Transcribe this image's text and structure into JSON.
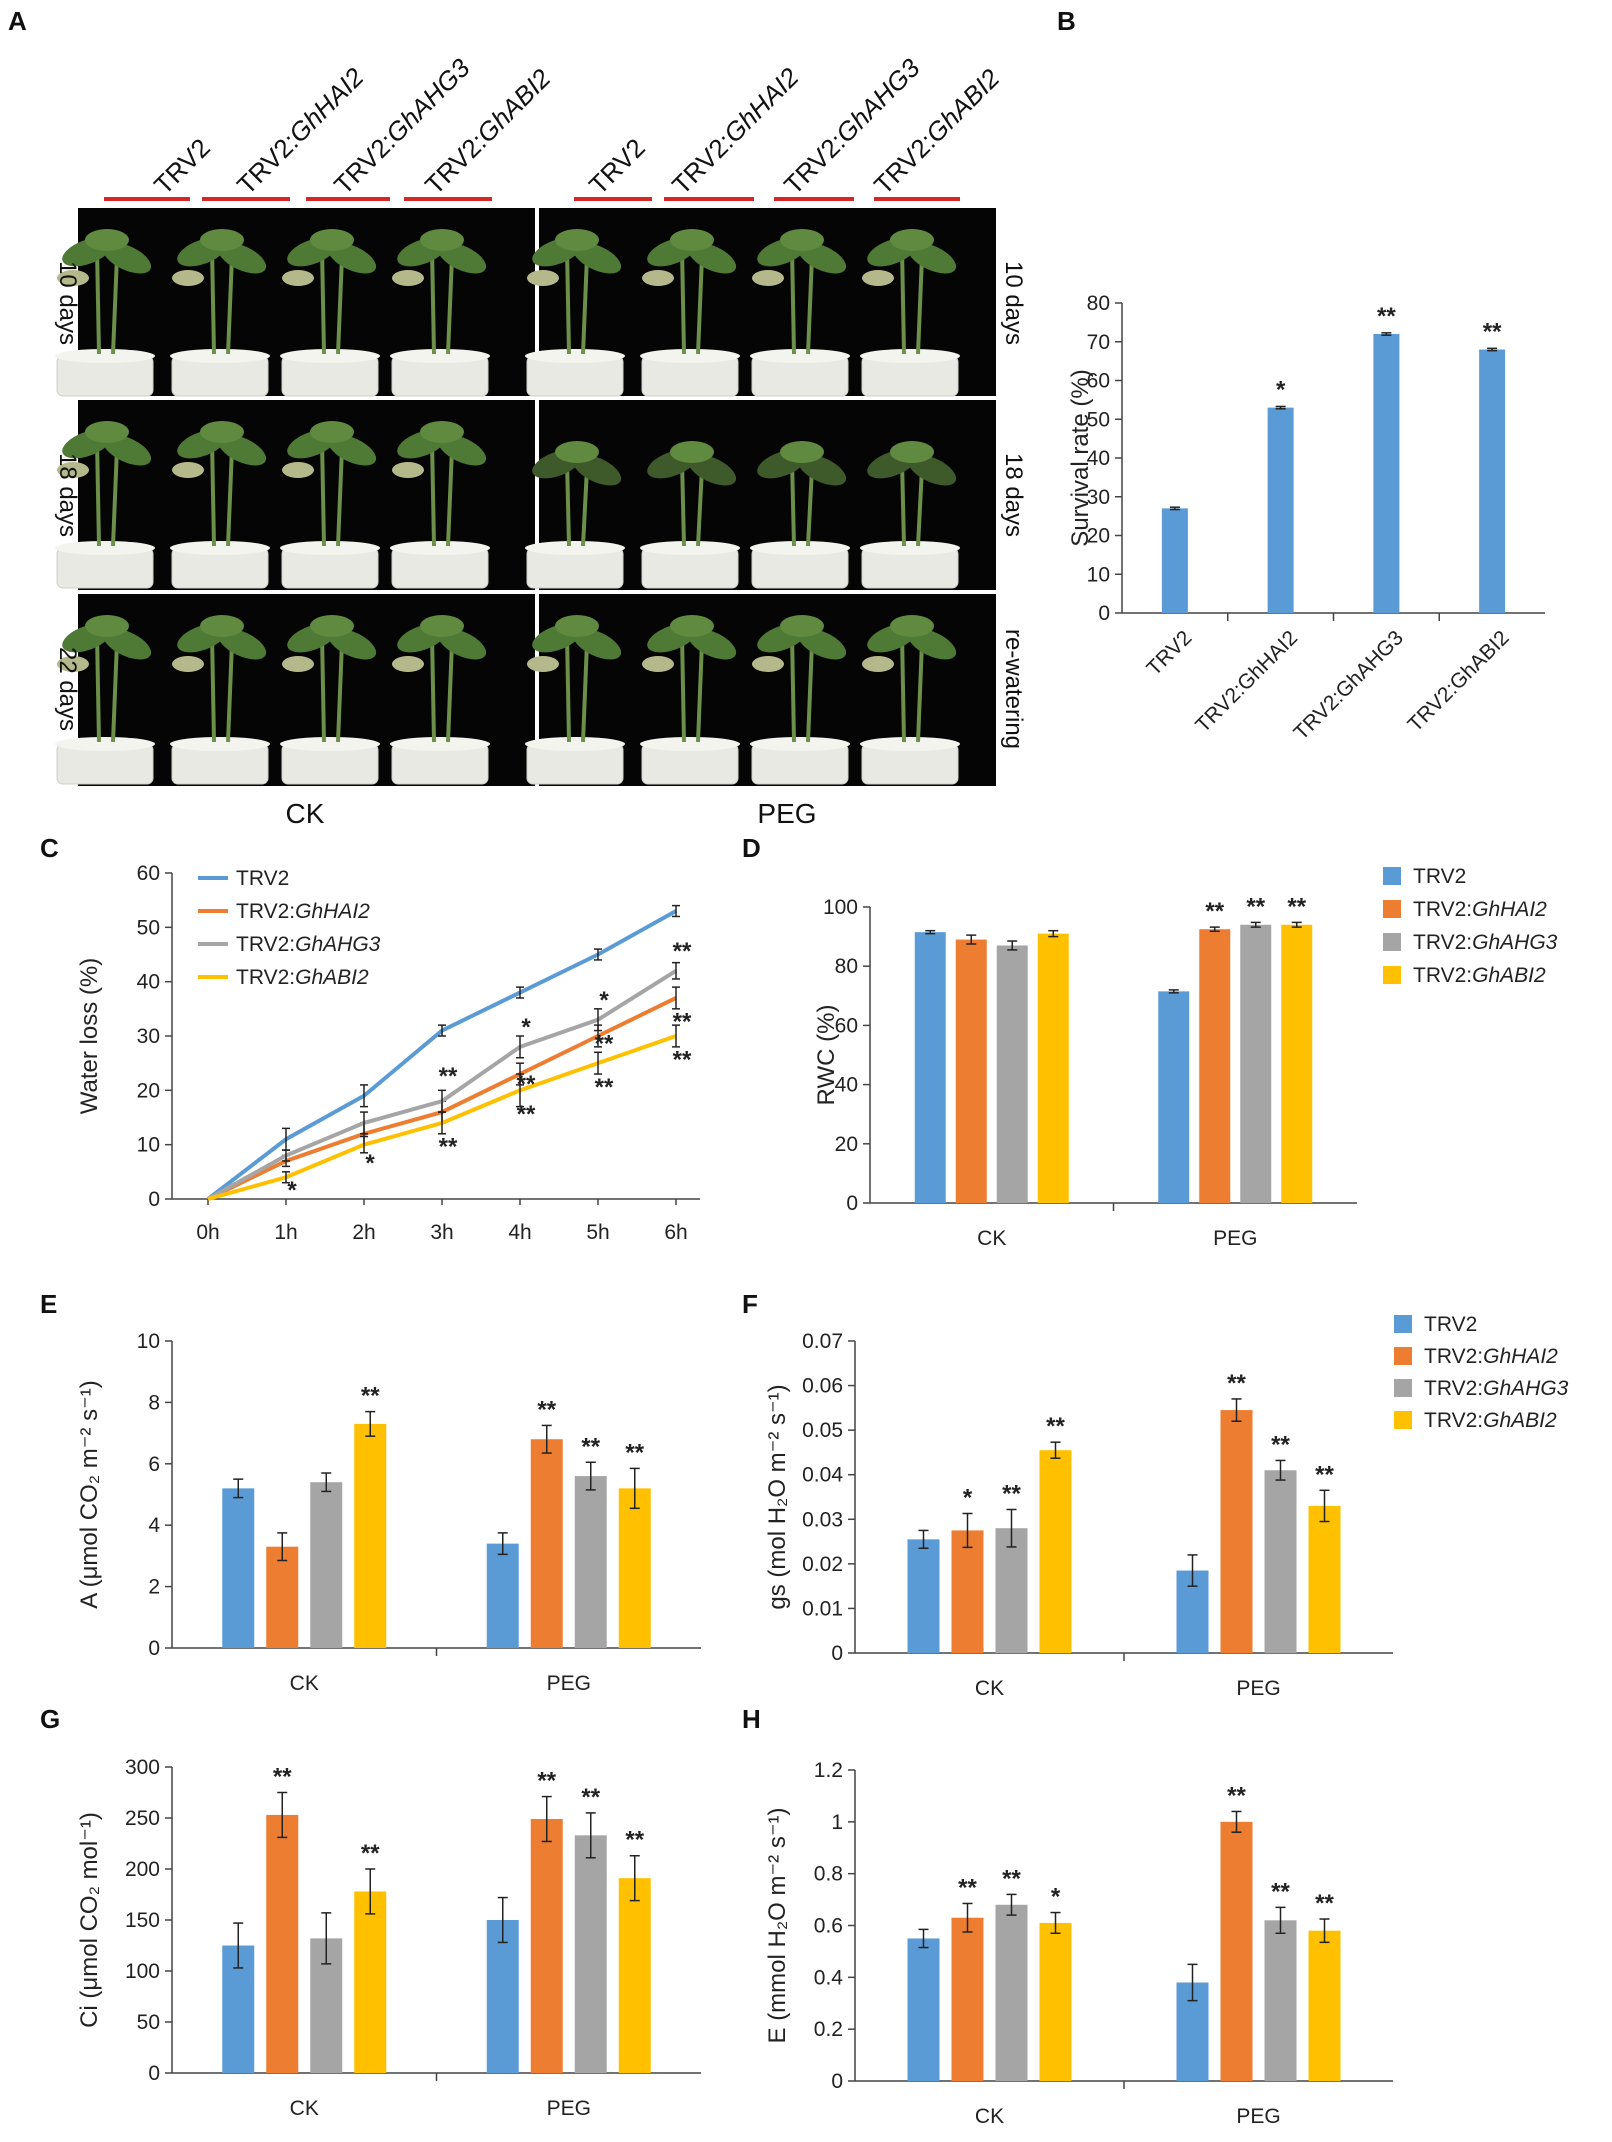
{
  "colors": {
    "TRV2": "#5B9BD5",
    "TRV2:GhHAI2": "#ED7D31",
    "TRV2:GhAHG3": "#A5A5A5",
    "TRV2:GhABI2": "#FFC000",
    "marker": "#d62728",
    "photo_bg": "#050505"
  },
  "panelA": {
    "letter": "A",
    "lines": [
      "TRV2",
      "TRV2:GhHAI2",
      "TRV2:GhAHG3",
      "TRV2:GhABI2"
    ],
    "lines_prefix": "TRV2:",
    "ck_rows": [
      "10 days",
      "18 days",
      "22 days"
    ],
    "peg_rows": [
      "10 days",
      "18 days",
      "re-watering"
    ],
    "ck_label": "CK",
    "peg_label": "PEG",
    "image_description": "Photographs of cotton seedlings in white pots against black background"
  },
  "chart_data": [
    {
      "panel": "B",
      "type": "bar",
      "categories": [
        "TRV2",
        "TRV2:GhHAI2",
        "TRV2:GhAHG3",
        "TRV2:GhABI2"
      ],
      "values": [
        27,
        53,
        72,
        68
      ],
      "errors": [
        0.3,
        0.3,
        0.3,
        0.3
      ],
      "stars": [
        "",
        "*",
        "**",
        "**"
      ],
      "ylabel": "Survival rate (%)",
      "ylim": [
        0,
        80
      ],
      "yticks": [
        "0",
        "10",
        "20",
        "30",
        "40",
        "50",
        "60",
        "70",
        "80"
      ]
    },
    {
      "panel": "C",
      "type": "line",
      "x": [
        "0h",
        "1h",
        "2h",
        "3h",
        "4h",
        "5h",
        "6h"
      ],
      "series": [
        {
          "name": "TRV2",
          "values": [
            0,
            11,
            19,
            31,
            38,
            45,
            53
          ],
          "errors": [
            0,
            2,
            2,
            1,
            1,
            1,
            1
          ]
        },
        {
          "name": "TRV2:GhHAI2",
          "values": [
            0,
            7,
            12,
            16,
            23,
            30,
            37
          ],
          "errors": [
            0,
            1,
            2,
            2,
            2,
            2,
            2
          ]
        },
        {
          "name": "TRV2:GhAHG3",
          "values": [
            0,
            8,
            14,
            18,
            28,
            33,
            42
          ],
          "errors": [
            0,
            1,
            2,
            2,
            2,
            2,
            1.5
          ]
        },
        {
          "name": "TRV2:GhABI2",
          "values": [
            0,
            4,
            10,
            14,
            20,
            25,
            30
          ],
          "errors": [
            0,
            1,
            1.5,
            2,
            3,
            2,
            2
          ]
        }
      ],
      "stars": [
        {
          "x": "1h",
          "label": "*",
          "y": 2
        },
        {
          "x": "2h",
          "label": "*",
          "y": 7
        },
        {
          "x": "3h",
          "label": "**",
          "y": 10
        },
        {
          "x": "3h",
          "label": "**",
          "y": 23
        },
        {
          "x": "4h",
          "label": "*",
          "y": 32
        },
        {
          "x": "4h",
          "label": "**",
          "y": 21.5
        },
        {
          "x": "4h",
          "label": "**",
          "y": 16
        },
        {
          "x": "5h",
          "label": "*",
          "y": 37
        },
        {
          "x": "5h",
          "label": "**",
          "y": 29
        },
        {
          "x": "5h",
          "label": "**",
          "y": 21
        },
        {
          "x": "6h",
          "label": "**",
          "y": 46
        },
        {
          "x": "6h",
          "label": "**",
          "y": 33
        },
        {
          "x": "6h",
          "label": "**",
          "y": 26
        }
      ],
      "ylabel": "Water loss (%)",
      "ylim": [
        0,
        60
      ],
      "yticks": [
        "0",
        "10",
        "20",
        "30",
        "40",
        "50",
        "60"
      ],
      "legend": [
        "TRV2",
        "TRV2:GhHAI2",
        "TRV2:GhAHG3",
        "TRV2:GhABI2"
      ]
    },
    {
      "panel": "D",
      "type": "bar",
      "categories": [
        "CK",
        "PEG"
      ],
      "series": [
        {
          "name": "TRV2",
          "values": [
            91.5,
            71.5
          ],
          "errors": [
            0.5,
            0.5
          ]
        },
        {
          "name": "TRV2:GhHAI2",
          "values": [
            89,
            92.5
          ],
          "errors": [
            1.5,
            0.7
          ]
        },
        {
          "name": "TRV2:GhAHG3",
          "values": [
            87,
            94
          ],
          "errors": [
            1.5,
            0.8
          ]
        },
        {
          "name": "TRV2:GhABI2",
          "values": [
            91,
            94
          ],
          "errors": [
            1,
            0.8
          ]
        }
      ],
      "stars": [
        [
          "",
          ""
        ],
        [
          "",
          "**"
        ],
        [
          "",
          "**"
        ],
        [
          "",
          "**"
        ]
      ],
      "ylabel": "RWC (%)",
      "ylim": [
        0,
        100
      ],
      "yticks": [
        "0",
        "20",
        "40",
        "60",
        "80",
        "100"
      ],
      "legend": [
        "TRV2",
        "TRV2:GhHAI2",
        "TRV2:GhAHG3",
        "TRV2:GhABI2"
      ]
    },
    {
      "panel": "E",
      "type": "bar",
      "categories": [
        "CK",
        "PEG"
      ],
      "series": [
        {
          "name": "TRV2",
          "values": [
            5.2,
            3.4
          ],
          "errors": [
            0.3,
            0.35
          ]
        },
        {
          "name": "TRV2:GhHAI2",
          "values": [
            3.3,
            6.8
          ],
          "errors": [
            0.45,
            0.45
          ]
        },
        {
          "name": "TRV2:GhAHG3",
          "values": [
            5.4,
            5.6
          ],
          "errors": [
            0.3,
            0.45
          ]
        },
        {
          "name": "TRV2:GhABI2",
          "values": [
            7.3,
            5.2
          ],
          "errors": [
            0.4,
            0.65
          ]
        }
      ],
      "stars": [
        [
          "",
          ""
        ],
        [
          "",
          "**"
        ],
        [
          "",
          "**"
        ],
        [
          "**",
          "**"
        ]
      ],
      "ylabel": "A (μmol CO₂ m⁻² s⁻¹)",
      "ylim": [
        0,
        10
      ],
      "yticks": [
        "0",
        "2",
        "4",
        "6",
        "8",
        "10"
      ]
    },
    {
      "panel": "F",
      "type": "bar",
      "categories": [
        "CK",
        "PEG"
      ],
      "series": [
        {
          "name": "TRV2",
          "values": [
            0.0255,
            0.0185
          ],
          "errors": [
            0.002,
            0.0035
          ]
        },
        {
          "name": "TRV2:GhHAI2",
          "values": [
            0.0275,
            0.0545
          ],
          "errors": [
            0.0038,
            0.0025
          ]
        },
        {
          "name": "TRV2:GhAHG3",
          "values": [
            0.028,
            0.041
          ],
          "errors": [
            0.0042,
            0.0022
          ]
        },
        {
          "name": "TRV2:GhABI2",
          "values": [
            0.0455,
            0.033
          ],
          "errors": [
            0.0018,
            0.0035
          ]
        }
      ],
      "stars": [
        [
          "",
          ""
        ],
        [
          "*",
          "**"
        ],
        [
          "**",
          "**"
        ],
        [
          "**",
          "**"
        ]
      ],
      "ylabel": "gs (mol H₂O m⁻² s⁻¹)",
      "ylim": [
        0,
        0.07
      ],
      "yticks": [
        "0",
        "0.01",
        "0.02",
        "0.03",
        "0.04",
        "0.05",
        "0.06",
        "0.07"
      ],
      "legend": [
        "TRV2",
        "TRV2:GhHAI2",
        "TRV2:GhAHG3",
        "TRV2:GhABI2"
      ]
    },
    {
      "panel": "G",
      "type": "bar",
      "categories": [
        "CK",
        "PEG"
      ],
      "series": [
        {
          "name": "TRV2",
          "values": [
            125,
            150
          ],
          "errors": [
            22,
            22
          ]
        },
        {
          "name": "TRV2:GhHAI2",
          "values": [
            253,
            249
          ],
          "errors": [
            22,
            22
          ]
        },
        {
          "name": "TRV2:GhAHG3",
          "values": [
            132,
            233
          ],
          "errors": [
            25,
            22
          ]
        },
        {
          "name": "TRV2:GhABI2",
          "values": [
            178,
            191
          ],
          "errors": [
            22,
            22
          ]
        }
      ],
      "stars": [
        [
          "",
          ""
        ],
        [
          "**",
          "**"
        ],
        [
          "",
          "**"
        ],
        [
          "**",
          "**"
        ]
      ],
      "ylabel": "Ci (μmol CO₂ mol⁻¹)",
      "ylim": [
        0,
        300
      ],
      "yticks": [
        "0",
        "50",
        "100",
        "150",
        "200",
        "250",
        "300"
      ]
    },
    {
      "panel": "H",
      "type": "bar",
      "categories": [
        "CK",
        "PEG"
      ],
      "series": [
        {
          "name": "TRV2",
          "values": [
            0.55,
            0.38
          ],
          "errors": [
            0.035,
            0.07
          ]
        },
        {
          "name": "TRV2:GhHAI2",
          "values": [
            0.63,
            1.0
          ],
          "errors": [
            0.055,
            0.04
          ]
        },
        {
          "name": "TRV2:GhAHG3",
          "values": [
            0.68,
            0.62
          ],
          "errors": [
            0.04,
            0.05
          ]
        },
        {
          "name": "TRV2:GhABI2",
          "values": [
            0.61,
            0.58
          ],
          "errors": [
            0.04,
            0.045
          ]
        }
      ],
      "stars": [
        [
          "",
          ""
        ],
        [
          "**",
          "**"
        ],
        [
          "**",
          "**"
        ],
        [
          "*",
          "**"
        ]
      ],
      "ylabel": "E (mmol H₂O m⁻² s⁻¹)",
      "ylim": [
        0,
        1.2
      ],
      "yticks": [
        "0",
        "0.2",
        "0.4",
        "0.6",
        "0.8",
        "1",
        "1.2"
      ]
    }
  ]
}
